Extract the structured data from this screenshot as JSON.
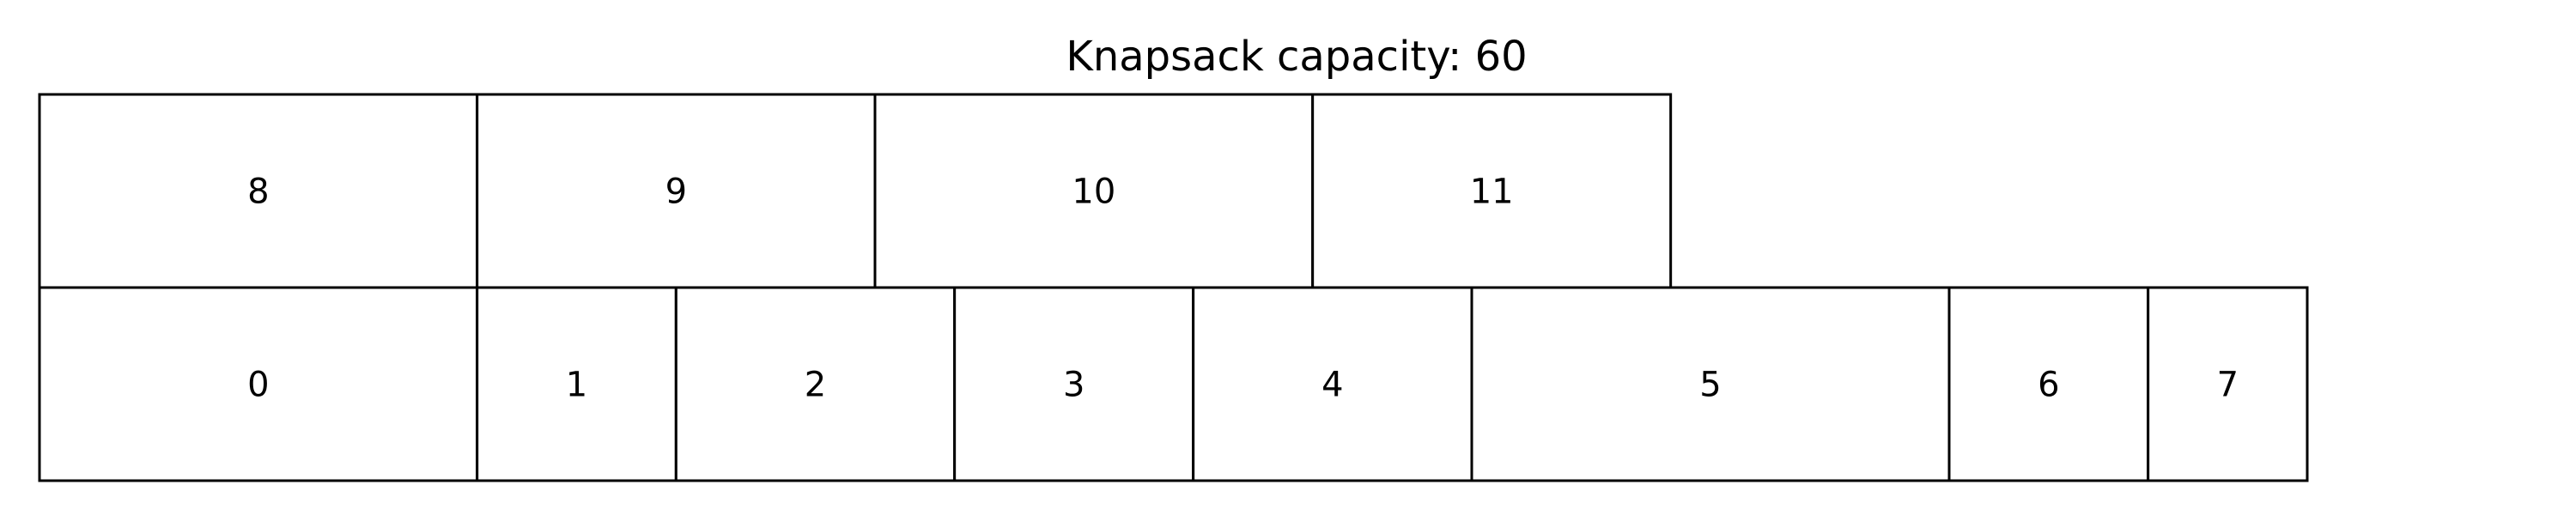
{
  "title": "Knapsack capacity: 60",
  "colors": {
    "background": "#ffffff",
    "box_fill": "#ffffff",
    "box_stroke": "#000000",
    "text": "#000000"
  },
  "capacity": 60,
  "rows": [
    {
      "name": "bottom-row",
      "items": [
        {
          "label": "0",
          "size": 11
        },
        {
          "label": "1",
          "size": 5
        },
        {
          "label": "2",
          "size": 7
        },
        {
          "label": "3",
          "size": 6
        },
        {
          "label": "4",
          "size": 7
        },
        {
          "label": "5",
          "size": 12
        },
        {
          "label": "6",
          "size": 5
        },
        {
          "label": "7",
          "size": 4
        }
      ]
    },
    {
      "name": "top-row",
      "items": [
        {
          "label": "8",
          "size": 11
        },
        {
          "label": "9",
          "size": 10
        },
        {
          "label": "10",
          "size": 11
        },
        {
          "label": "11",
          "size": 9
        }
      ]
    }
  ]
}
